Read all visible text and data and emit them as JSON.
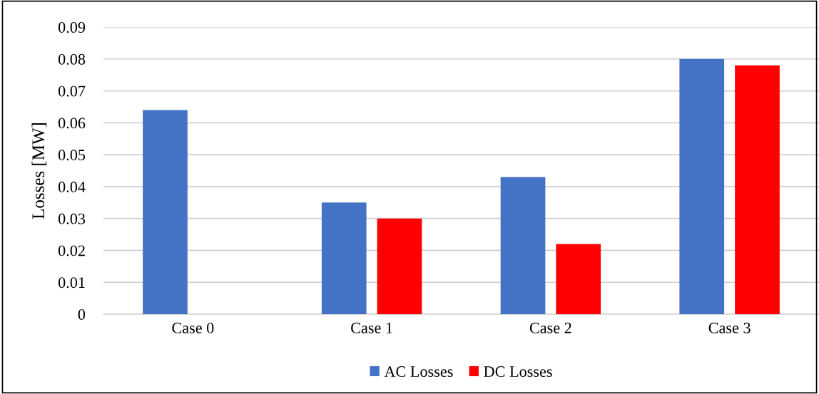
{
  "chart_data": {
    "type": "bar",
    "ylabel": "Losses [MW]",
    "categories": [
      "Case 0",
      "Case 1",
      "Case 2",
      "Case 3"
    ],
    "series": [
      {
        "name": "AC Losses",
        "color": "#4472c4",
        "values": [
          0.064,
          0.035,
          0.043,
          0.08
        ]
      },
      {
        "name": "DC Losses",
        "color": "#ff0000",
        "values": [
          null,
          0.03,
          0.022,
          0.078
        ]
      }
    ],
    "ylim": [
      0,
      0.09
    ],
    "yticks": [
      0,
      0.01,
      0.02,
      0.03,
      0.04,
      0.05,
      0.06,
      0.07,
      0.08,
      0.09
    ],
    "grid": "y",
    "legend": "bottom"
  }
}
